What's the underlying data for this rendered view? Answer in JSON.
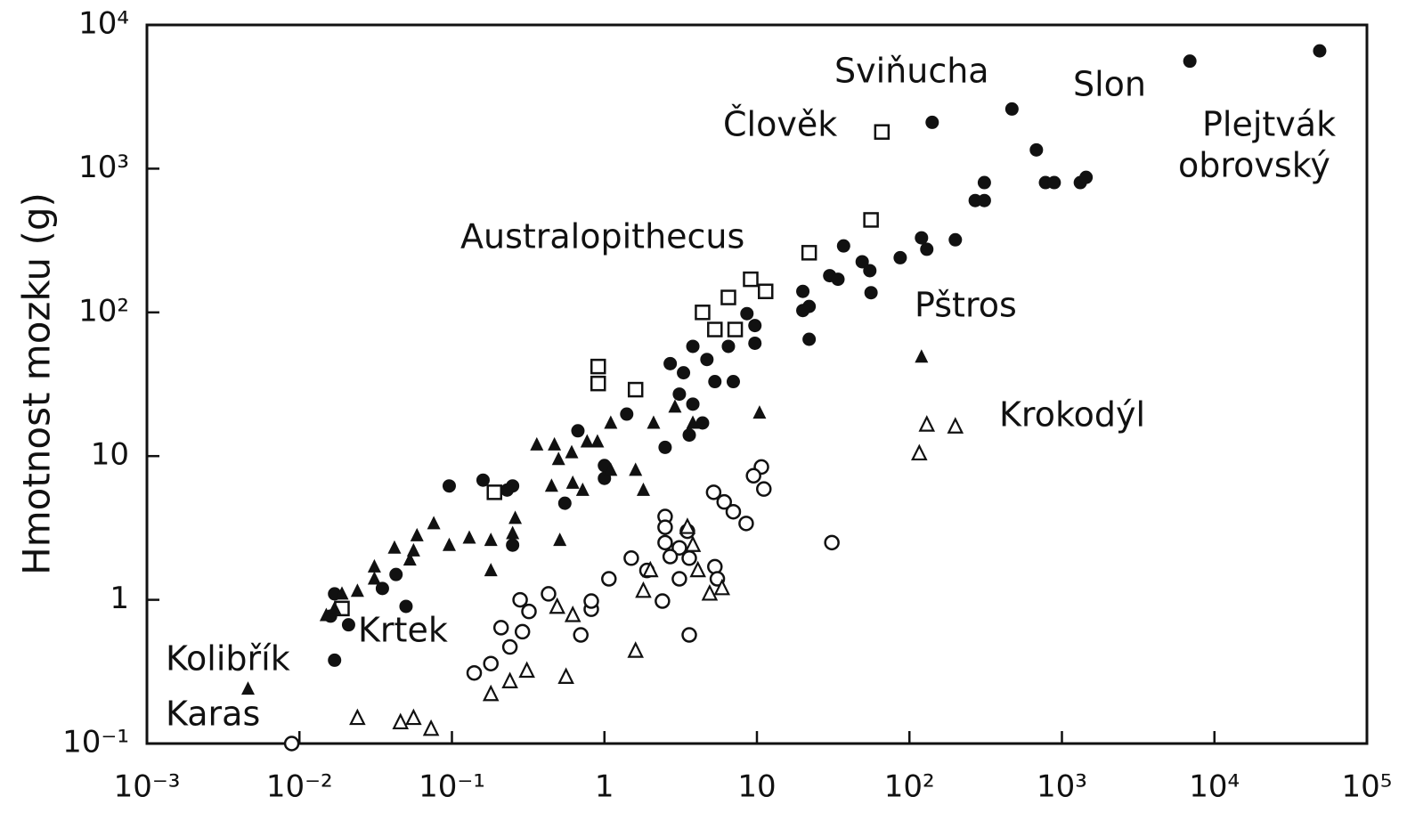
{
  "chart_data": {
    "type": "scatter",
    "y_label": "Hmotnost mozku (g)",
    "xscale": "log",
    "yscale": "log",
    "xlim": [
      0.001,
      100000
    ],
    "ylim": [
      0.1,
      10000
    ],
    "xticks": [
      {
        "value": 0.001,
        "label": "10⁻³"
      },
      {
        "value": 0.01,
        "label": "10⁻²"
      },
      {
        "value": 0.1,
        "label": "10⁻¹"
      },
      1,
      10,
      {
        "value": 100,
        "label": "10²"
      },
      {
        "value": 1000,
        "label": "10³"
      },
      {
        "value": 10000,
        "label": "10⁴"
      },
      {
        "value": 100000,
        "label": "10⁵"
      }
    ],
    "yticks": [
      {
        "value": 0.1,
        "label": "10⁻¹"
      },
      1,
      10,
      {
        "value": 100,
        "label": "10²"
      },
      {
        "value": 1000,
        "label": "10³"
      },
      {
        "value": 10000,
        "label": "10⁴"
      }
    ],
    "annotations": [
      "Sviňucha",
      "Slon",
      "Člověk",
      "Plejtvák",
      "obrovský",
      "Australopithecus",
      "Pštros",
      "Krokodýl",
      "Krtek",
      "Kolibřík",
      "Karas"
    ],
    "series": [
      {
        "marker": "filled-circle",
        "color": "#111111",
        "x": [
          49000,
          6900,
          141,
          470,
          680,
          780,
          890,
          1320,
          1440,
          310,
          270,
          310,
          120,
          130,
          200,
          87,
          37,
          49,
          55,
          30,
          34,
          20,
          22,
          20,
          56,
          22,
          8.6,
          9.7,
          9.7,
          6.5,
          3.8,
          4.7,
          2.7,
          3.3,
          5.3,
          7,
          3.1,
          3.8,
          4.4,
          3.6,
          2.5,
          1.4,
          0.67,
          1.0,
          1,
          0.55,
          0.25,
          0.16,
          0.23,
          0.096,
          0.25,
          0.043,
          0.035,
          0.05,
          0.021,
          0.017,
          0.016,
          0.017
        ],
        "values": [
          6600,
          5600,
          2100,
          2600,
          1350,
          800,
          800,
          800,
          870,
          800,
          600,
          600,
          330,
          275,
          320,
          240,
          290,
          225,
          195,
          180,
          170,
          140,
          110,
          103,
          137,
          65,
          98,
          81,
          61,
          58,
          58,
          47,
          44,
          38,
          33,
          33,
          27,
          23,
          17,
          14,
          11.5,
          19.6,
          15,
          8.6,
          7,
          4.7,
          6.2,
          6.8,
          5.8,
          6.2,
          2.4,
          1.5,
          1.2,
          0.9,
          0.67,
          1.1,
          0.77,
          0.38
        ]
      },
      {
        "marker": "open-square",
        "color": "#111111",
        "x": [
          66,
          56,
          22,
          9.1,
          11.4,
          6.5,
          4.4,
          5.3,
          7.2,
          0.91,
          0.91,
          1.6,
          0.19,
          0.019
        ],
        "values": [
          1800,
          440,
          260,
          170,
          140,
          127,
          100,
          76,
          76,
          42,
          32,
          29,
          5.6,
          0.87
        ]
      },
      {
        "marker": "filled-triangle",
        "color": "#111111",
        "x": [
          120,
          10.4,
          3.8,
          2.9,
          2.1,
          1.1,
          0.9,
          0.77,
          0.61,
          0.47,
          0.36,
          0.5,
          0.62,
          0.45,
          0.72,
          1.6,
          1.8,
          1.1,
          0.26,
          0.25,
          0.51,
          0.18,
          0.18,
          0.096,
          0.13,
          0.076,
          0.059,
          0.056,
          0.053,
          0.042,
          0.031,
          0.031,
          0.024,
          0.019,
          0.017,
          0.0046,
          0.015
        ],
        "values": [
          49,
          20,
          17,
          22,
          17,
          17,
          12.6,
          12.6,
          10.6,
          12,
          12,
          9.5,
          6.5,
          6.2,
          5.8,
          8,
          5.8,
          8,
          3.7,
          2.9,
          2.6,
          2.6,
          1.6,
          2.4,
          2.7,
          3.4,
          2.8,
          2.2,
          1.9,
          2.3,
          1.7,
          1.4,
          1.15,
          1.1,
          0.87,
          0.24,
          0.78
        ]
      },
      {
        "marker": "open-circle",
        "color": "#111111",
        "x": [
          0.0089,
          0.14,
          0.18,
          0.24,
          0.21,
          0.29,
          0.32,
          0.28,
          0.43,
          0.7,
          0.82,
          0.82,
          1.07,
          1.5,
          1.9,
          2.4,
          3.1,
          2.5,
          2.5,
          2.5,
          3.1,
          3.5,
          3.6,
          2.7,
          5.3,
          3.6,
          5.2,
          6.1,
          7.0,
          8.5,
          10.7,
          11.1,
          9.5,
          31,
          5.5
        ],
        "values": [
          0.1,
          0.31,
          0.36,
          0.47,
          0.64,
          0.6,
          0.83,
          1.0,
          1.1,
          0.57,
          0.86,
          0.98,
          1.4,
          1.95,
          1.6,
          0.98,
          1.4,
          3.8,
          3.2,
          2.5,
          2.3,
          3.0,
          1.95,
          2.0,
          1.7,
          0.57,
          5.6,
          4.8,
          4.1,
          3.4,
          8.4,
          5.9,
          7.3,
          2.5,
          1.4
        ]
      },
      {
        "marker": "open-triangle",
        "color": "#111111",
        "x": [
          200,
          130,
          116,
          3.5,
          3.8,
          4.1,
          5.9,
          4.9,
          2.0,
          1.8,
          1.6,
          0.62,
          0.49,
          0.56,
          0.31,
          0.24,
          0.18,
          0.073,
          0.056,
          0.046,
          0.024
        ],
        "values": [
          16,
          16.5,
          10.4,
          3.2,
          2.4,
          1.6,
          1.2,
          1.1,
          1.6,
          1.15,
          0.44,
          0.78,
          0.89,
          0.29,
          0.32,
          0.27,
          0.22,
          0.126,
          0.15,
          0.14,
          0.15
        ]
      }
    ]
  }
}
